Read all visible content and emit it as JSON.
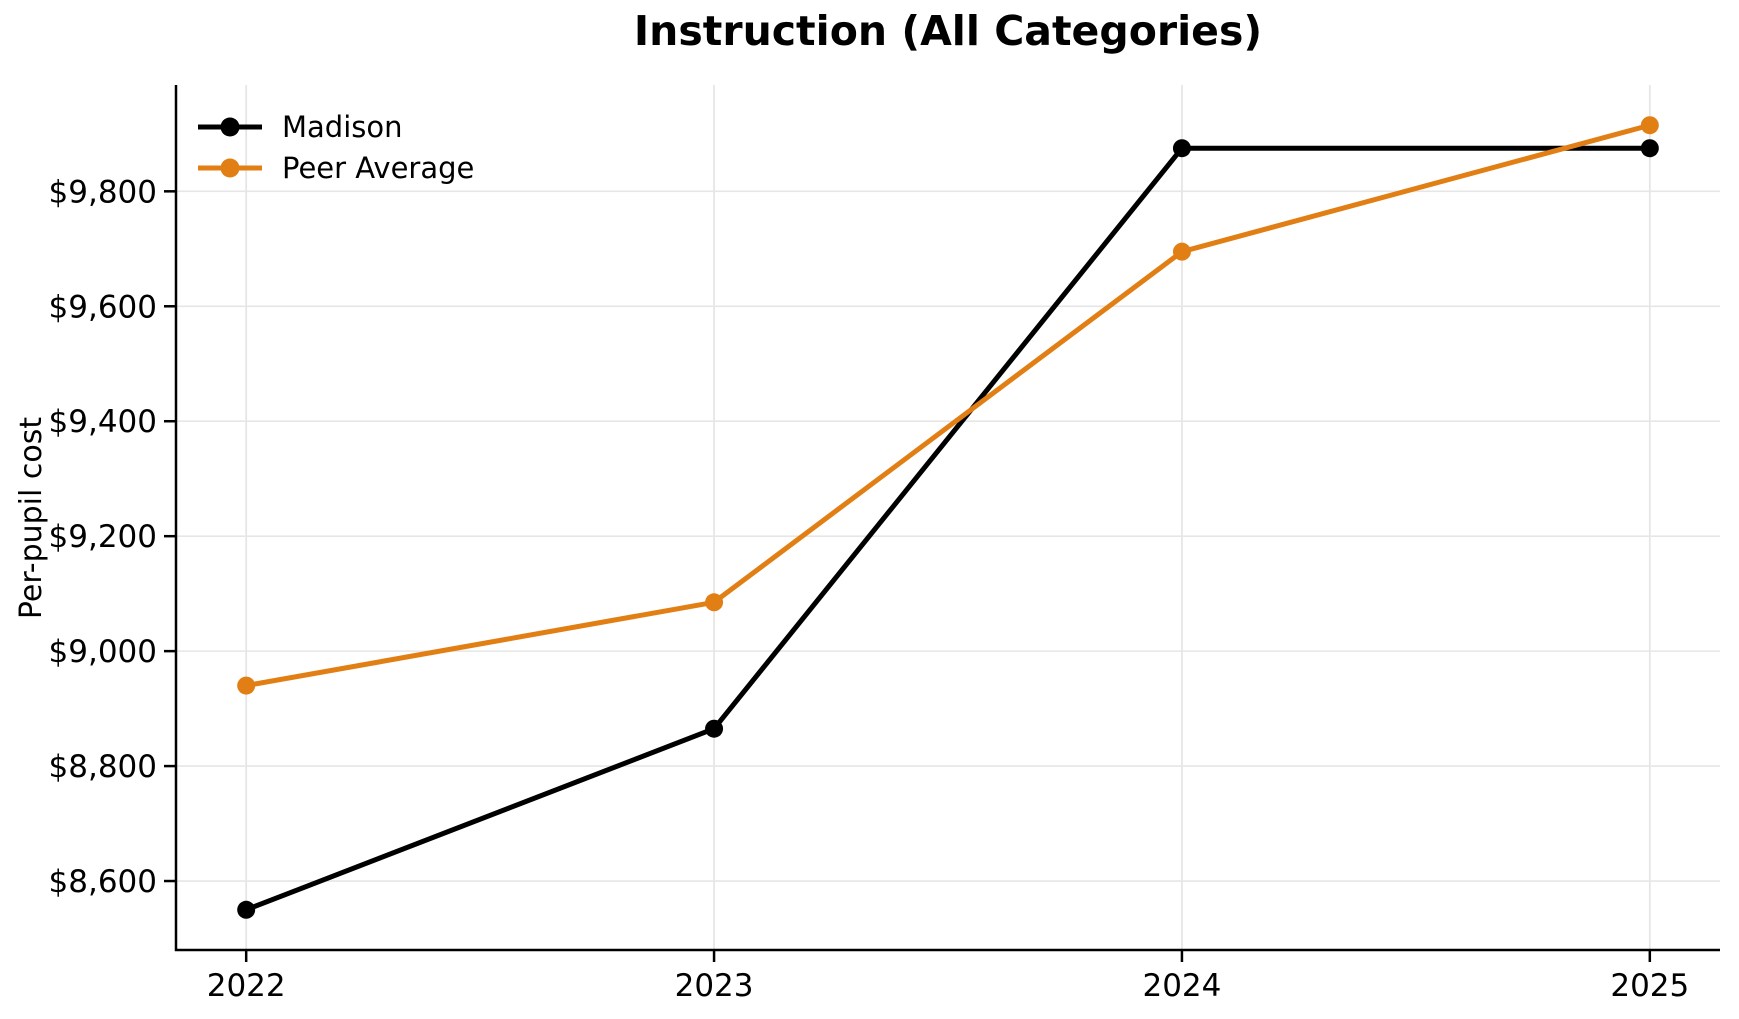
{
  "figure": {
    "background_color": "#ffffff"
  },
  "chart_data": {
    "type": "line",
    "title": "Instruction (All Categories)",
    "xlabel": "",
    "ylabel": "Per-pupil cost",
    "categories": [
      "2022",
      "2023",
      "2024",
      "2025"
    ],
    "series": [
      {
        "name": "Madison",
        "color": "#000000",
        "values": [
          8550,
          8865,
          9875,
          9875
        ]
      },
      {
        "name": "Peer Average",
        "color": "#E17F14",
        "values": [
          8940,
          9085,
          9695,
          9915
        ]
      }
    ],
    "ylim": [
      8480,
      9985
    ],
    "yticks": {
      "values": [
        8600,
        8800,
        9000,
        9200,
        9400,
        9600,
        9800
      ],
      "labels": [
        "$8,600",
        "$8,800",
        "$9,000",
        "$9,200",
        "$9,400",
        "$9,600",
        "$9,800"
      ]
    },
    "legend": {
      "position": "upper left",
      "entries": [
        "Madison",
        "Peer Average"
      ]
    },
    "grid": true,
    "grid_color": "#e6e6e6",
    "axis_color": "#000000",
    "tick_label_color": "#000000",
    "line_width": 5,
    "marker_radius": 9
  }
}
